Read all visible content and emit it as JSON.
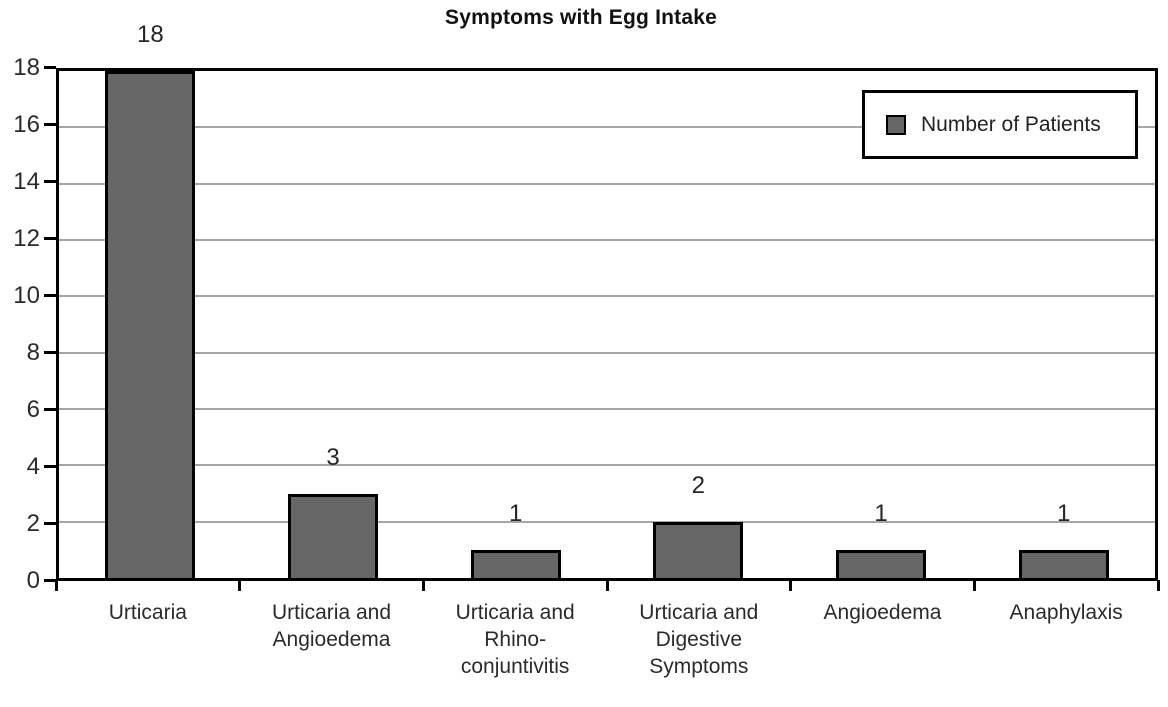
{
  "chart_data": {
    "type": "bar",
    "title": "Symptoms with Egg Intake",
    "categories": [
      "Urticaria",
      "Urticaria and Angioedema",
      "Urticaria and Rhino-conjuntivitis",
      "Urticaria and Digestive Symptoms",
      "Angioedema",
      "Anaphylaxis"
    ],
    "category_label_lines": [
      [
        "Urticaria"
      ],
      [
        "Urticaria and",
        "Angioedema"
      ],
      [
        "Urticaria and",
        "Rhino-",
        "conjuntivitis"
      ],
      [
        "Urticaria and",
        "Digestive",
        "Symptoms"
      ],
      [
        "Angioedema"
      ],
      [
        "Anaphylaxis"
      ]
    ],
    "series": [
      {
        "name": "Number of Patients",
        "values": [
          18,
          3,
          1,
          2,
          1,
          1
        ]
      }
    ],
    "value_labels": [
      "18",
      "3",
      "1",
      "2",
      "1",
      "1"
    ],
    "xlabel": "",
    "ylabel": "",
    "ylim": [
      0,
      18
    ],
    "ytick_step": 2,
    "ytick_labels": [
      "0",
      "2",
      "4",
      "6",
      "8",
      "10",
      "12",
      "14",
      "16",
      "18"
    ],
    "grid": true,
    "legend_position": "top-right",
    "colors": {
      "bar_fill": "#666666",
      "bar_border": "#000000",
      "gridline": "#a6a6a6",
      "axis": "#000000",
      "text": "#2b2b2b",
      "background": "#ffffff"
    }
  }
}
